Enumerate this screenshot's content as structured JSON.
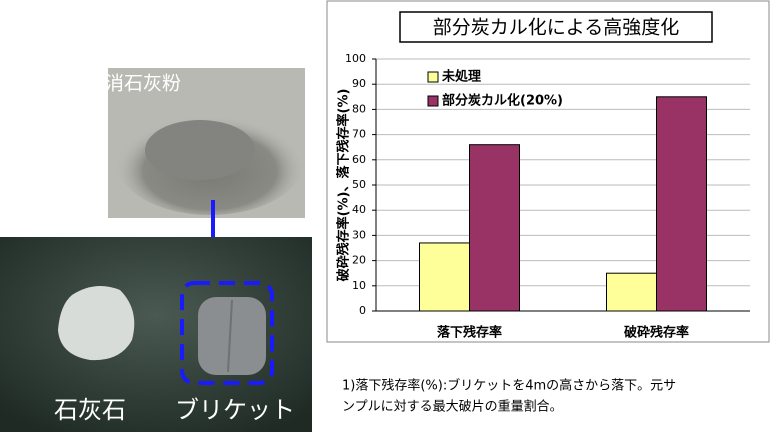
{
  "photos": {
    "powder_label": "消石灰粉",
    "stone_label": "石灰石",
    "briquette_label": "ブリケット"
  },
  "footnote": [
    "1)落下残存率(%):ブリケットを4mの高さから落下。元サ",
    "ンプルに対する最大破片の重量割合。"
  ],
  "chart_data": {
    "type": "bar",
    "title": "部分炭カル化による高強度化",
    "y_label": "破砕残存率(%)、落下残存率(%)",
    "categories": [
      "落下残存率",
      "破砕残存率"
    ],
    "series": [
      {
        "name": "未処理",
        "color": "#ffff99",
        "values": [
          27,
          15
        ]
      },
      {
        "name": "部分炭カル化(20%)",
        "color": "#993366",
        "values": [
          66,
          85
        ]
      }
    ],
    "ylim": [
      0,
      100
    ],
    "yticks": [
      0,
      10,
      20,
      30,
      40,
      50,
      60,
      70,
      80,
      90,
      100
    ],
    "grid": true,
    "legend": "top-left"
  }
}
